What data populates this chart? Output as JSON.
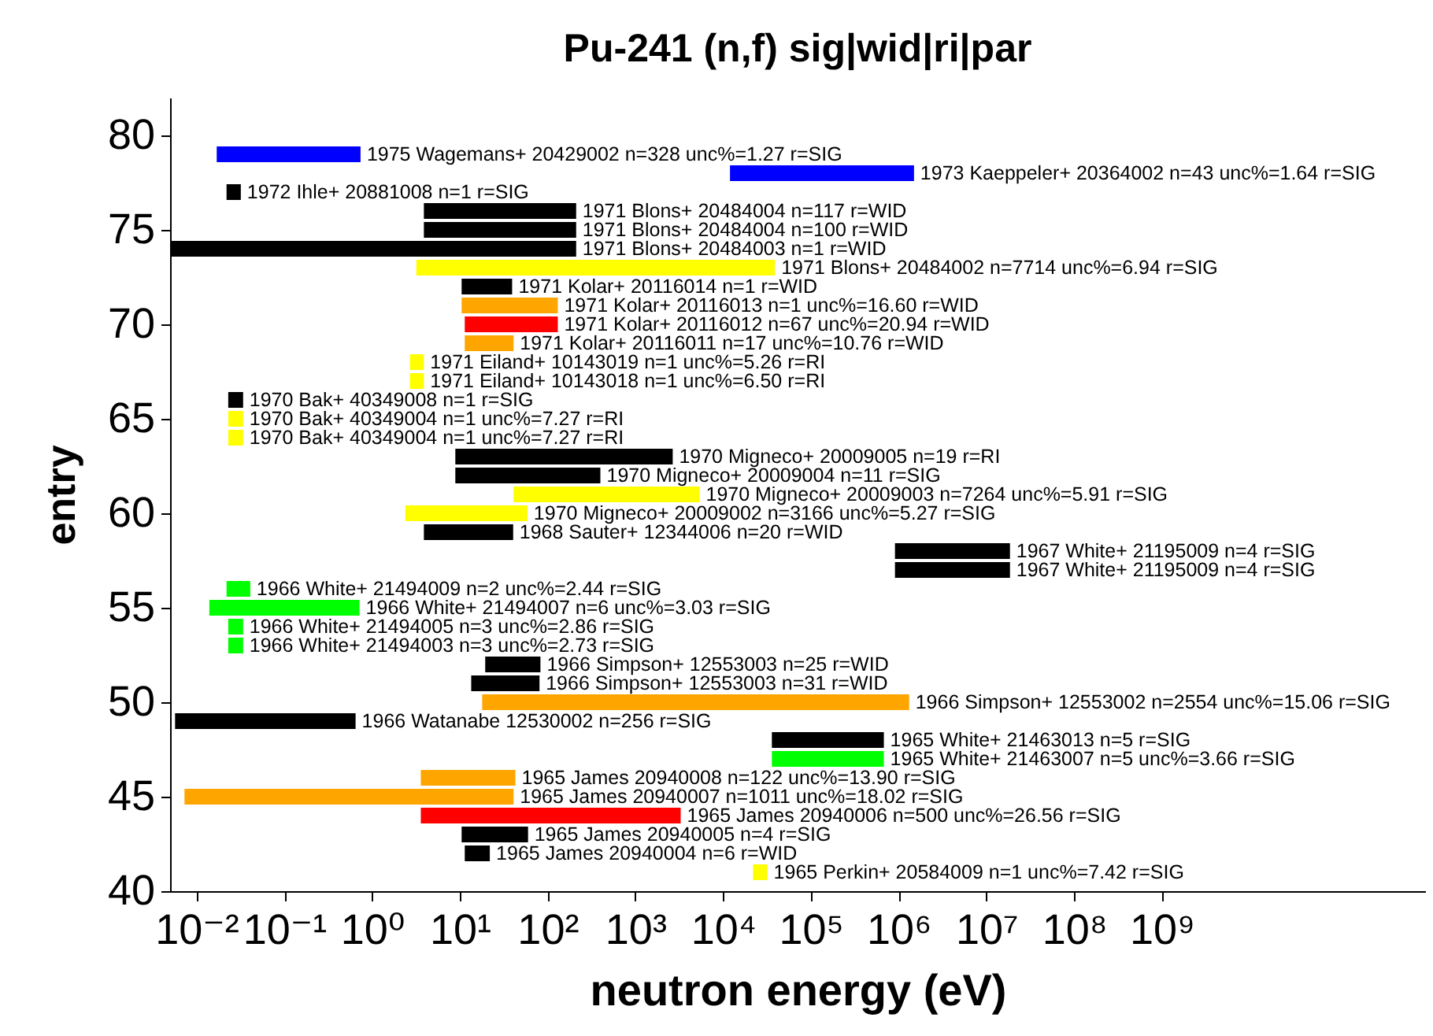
{
  "chart_data": {
    "type": "bar",
    "orientation": "horizontal",
    "title": "Pu-241 (n,f) sig|wid|ri|par",
    "xlabel": "neutron energy (eV)",
    "ylabel": "entry",
    "log": "x",
    "grid": false,
    "x": [
      79,
      78,
      77,
      76,
      75,
      74,
      73,
      72,
      71,
      70,
      69,
      68,
      67,
      66,
      65,
      64,
      63,
      62,
      61,
      60,
      59,
      58,
      57,
      56,
      55,
      54,
      53,
      52,
      51,
      50,
      49,
      48,
      47,
      46,
      45,
      44,
      43,
      42,
      41
    ],
    "base": [
      0.017,
      12000,
      0.022,
      3.9,
      3.9,
      0.005,
      3.2,
      10.5,
      10.5,
      11.4,
      11.4,
      2.7,
      2.7,
      0.023,
      0.023,
      0.023,
      8.9,
      8.9,
      41,
      2.4,
      3.9,
      910000,
      910000,
      0.022,
      0.014,
      0.023,
      0.023,
      19.5,
      13.5,
      18,
      0.0057,
      36000,
      36000,
      3.6,
      0.0073,
      3.6,
      10.5,
      11.4,
      22000
    ],
    "values": [
      0.723,
      1488000,
      0.01,
      208.1,
      208.1,
      211.995,
      38996.8,
      29,
      120.5,
      119.6,
      29.6,
      1.2,
      1.2,
      0.011,
      0.011,
      0.011,
      2661.1,
      391.1,
      5359,
      56.6,
      36.7,
      17690000,
      17690000,
      0.019,
      0.706,
      0.011,
      0.011,
      63.5,
      67.5,
      1319982,
      0.6443,
      644000,
      644000,
      39.4,
      40.9927,
      3286.4,
      49.5,
      10.6,
      10000
    ],
    "colors": [
      "#0000ff",
      "#0000ff",
      "#000000",
      "#000000",
      "#000000",
      "#000000",
      "#ffff00",
      "#000000",
      "#ffa500",
      "#ff0000",
      "#ffa500",
      "#ffff00",
      "#ffff00",
      "#000000",
      "#ffff00",
      "#ffff00",
      "#000000",
      "#000000",
      "#ffff00",
      "#ffff00",
      "#000000",
      "#000000",
      "#000000",
      "#00ff00",
      "#00ff00",
      "#00ff00",
      "#00ff00",
      "#000000",
      "#000000",
      "#ffa500",
      "#000000",
      "#000000",
      "#00ff00",
      "#ffa500",
      "#ffa500",
      "#ff0000",
      "#000000",
      "#000000",
      "#ffff00"
    ],
    "annotations": [
      {
        "text": "1975 Wagemans+ 20429002 n=328 unc%=1.27 r=SIG",
        "x": 0.74,
        "y": 79
      },
      {
        "text": "1973 Kaeppeler+ 20364002 n=43 unc%=1.64 r=SIG",
        "x": 1500000,
        "y": 78
      },
      {
        "text": "1972 Ihle+ 20881008 n=1 r=SIG",
        "x": 0.032,
        "y": 77
      },
      {
        "text": "1971 Blons+ 20484004 n=117 r=WID",
        "x": 212,
        "y": 76
      },
      {
        "text": "1971 Blons+ 20484004 n=100 r=WID",
        "x": 212,
        "y": 75
      },
      {
        "text": "1971 Blons+ 20484003 n=1 r=WID",
        "x": 212,
        "y": 74
      },
      {
        "text": "1971 Blons+ 20484002 n=7714 unc%=6.94 r=SIG",
        "x": 39000,
        "y": 73
      },
      {
        "text": "1971 Kolar+ 20116014 n=1 r=WID",
        "x": 39.5,
        "y": 72
      },
      {
        "text": "1971 Kolar+ 20116013 n=1 unc%=16.60 r=WID",
        "x": 131,
        "y": 71
      },
      {
        "text": "1971 Kolar+ 20116012 n=67 unc%=20.94 r=WID",
        "x": 131,
        "y": 70
      },
      {
        "text": "1971 Kolar+ 20116011 n=17 unc%=10.76 r=WID",
        "x": 41,
        "y": 69
      },
      {
        "text": "1971 Eiland+ 10143019 n=1 unc%=5.26 r=RI",
        "x": 3.9,
        "y": 68
      },
      {
        "text": "1971 Eiland+ 10143018 n=1 unc%=6.50 r=RI",
        "x": 3.9,
        "y": 67
      },
      {
        "text": "1970 Bak+ 40349008 n=1 r=SIG",
        "x": 0.034,
        "y": 66
      },
      {
        "text": "1970 Bak+ 40349004 n=1 unc%=7.27 r=RI",
        "x": 0.034,
        "y": 65
      },
      {
        "text": "1970 Bak+ 40349004 n=1 unc%=7.27 r=RI",
        "x": 0.034,
        "y": 64
      },
      {
        "text": "1970 Migneco+ 20009005 n=19 r=RI",
        "x": 2670,
        "y": 63
      },
      {
        "text": "1970 Migneco+ 20009004 n=11 r=SIG",
        "x": 400,
        "y": 62
      },
      {
        "text": "1970 Migneco+ 20009003 n=7264 unc%=5.91 r=SIG",
        "x": 5400,
        "y": 61
      },
      {
        "text": "1970 Migneco+ 20009002 n=3166 unc%=5.27 r=SIG",
        "x": 59,
        "y": 60
      },
      {
        "text": "1968 Sauter+ 12344006 n=20 r=WID",
        "x": 40.6,
        "y": 59
      },
      {
        "text": "1967 White+ 21195009 n=4 r=SIG",
        "x": 18600000,
        "y": 58
      },
      {
        "text": "1967 White+ 21195009 n=4 r=SIG",
        "x": 18600000,
        "y": 57
      },
      {
        "text": "1966 White+ 21494009 n=2 unc%=2.44 r=SIG",
        "x": 0.041,
        "y": 56
      },
      {
        "text": "1966 White+ 21494007 n=6 unc%=3.03 r=SIG",
        "x": 0.72,
        "y": 55
      },
      {
        "text": "1966 White+ 21494005 n=3 unc%=2.86 r=SIG",
        "x": 0.034,
        "y": 54
      },
      {
        "text": "1966 White+ 21494003 n=3 unc%=2.73 r=SIG",
        "x": 0.034,
        "y": 53
      },
      {
        "text": "1966 Simpson+ 12553003 n=25 r=WID",
        "x": 83,
        "y": 52
      },
      {
        "text": "1966 Simpson+ 12553003 n=31 r=WID",
        "x": 81,
        "y": 51
      },
      {
        "text": "1966 Simpson+ 12553002 n=2554 unc%=15.06 r=SIG",
        "x": 1320000,
        "y": 50
      },
      {
        "text": "1966 Watanabe 12530002 n=256 r=SIG",
        "x": 0.65,
        "y": 49
      },
      {
        "text": "1965 White+ 21463013 n=5 r=SIG",
        "x": 680000,
        "y": 48
      },
      {
        "text": "1965 White+ 21463007 n=5 unc%=3.66 r=SIG",
        "x": 680000,
        "y": 47
      },
      {
        "text": "1965 James 20940008 n=122 unc%=13.90 r=SIG",
        "x": 43,
        "y": 46
      },
      {
        "text": "1965 James 20940007 n=1011 unc%=18.02 r=SIG",
        "x": 41,
        "y": 45
      },
      {
        "text": "1965 James 20940006 n=500 unc%=26.56 r=SIG",
        "x": 3290,
        "y": 44
      },
      {
        "text": "1965 James 20940005 n=4 r=SIG",
        "x": 60,
        "y": 43
      },
      {
        "text": "1965 James 20940004 n=6 r=WID",
        "x": 22,
        "y": 42
      },
      {
        "text": "1965 Perkin+ 20584009 n=1 unc%=7.42 r=SIG",
        "x": 32000,
        "y": 41
      }
    ],
    "xlim": [
      0.005,
      1000000000000.0
    ],
    "xticks": [
      {
        "value": 0.01,
        "label": "10⁻²"
      },
      {
        "value": 0.1,
        "label": "10⁻¹"
      },
      {
        "value": 1,
        "label": "10⁰"
      },
      {
        "value": 10,
        "label": "10¹"
      },
      {
        "value": 100,
        "label": "10²"
      },
      {
        "value": 1000,
        "label": "10³"
      },
      {
        "value": 10000,
        "label": "10⁴"
      },
      {
        "value": 100000,
        "label": "10⁵"
      },
      {
        "value": 1000000,
        "label": "10⁶"
      },
      {
        "value": 10000000,
        "label": "10⁷"
      },
      {
        "value": 100000000,
        "label": "10⁸"
      },
      {
        "value": 1000000000,
        "label": "10⁹"
      }
    ],
    "ylim": [
      40,
      82
    ],
    "yticks": [
      40,
      45,
      50,
      55,
      60,
      65,
      70,
      75,
      80
    ]
  }
}
